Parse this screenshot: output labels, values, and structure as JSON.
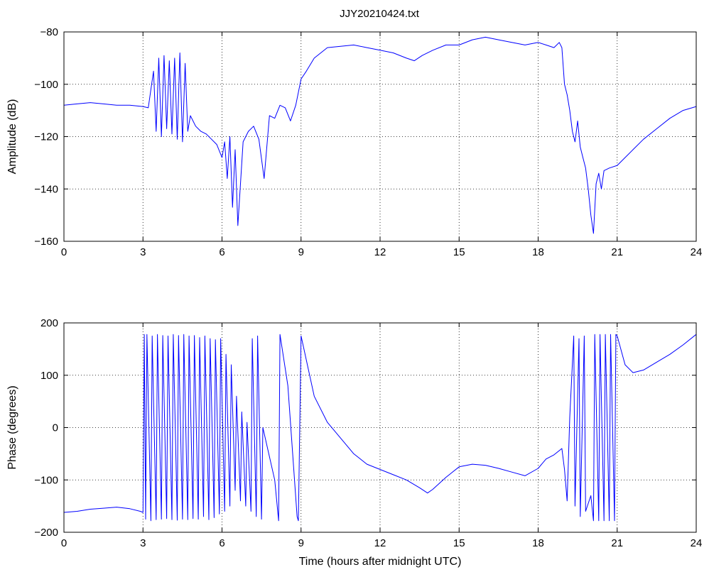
{
  "figure": {
    "title": "JJY20210424.txt"
  },
  "chart_data": [
    {
      "type": "line",
      "title": "JJY20210424.txt",
      "xlabel": "",
      "ylabel": "Amplitude (dB)",
      "xlim": [
        0,
        24
      ],
      "ylim": [
        -160,
        -80
      ],
      "xticks": [
        0,
        3,
        6,
        9,
        12,
        15,
        18,
        21,
        24
      ],
      "yticks": [
        -160,
        -140,
        -120,
        -100,
        -80
      ],
      "grid": true,
      "color": "#0000ff",
      "series": [
        {
          "x": [
            0,
            0.5,
            1,
            1.5,
            2,
            2.5,
            3,
            3.2,
            3.4,
            3.5,
            3.6,
            3.7,
            3.8,
            3.9,
            4.0,
            4.1,
            4.2,
            4.3,
            4.4,
            4.5,
            4.6,
            4.7,
            4.8,
            5.0,
            5.2,
            5.4,
            5.6,
            5.8,
            6.0,
            6.1,
            6.2,
            6.3,
            6.4,
            6.5,
            6.6,
            6.8,
            7.0,
            7.2,
            7.4,
            7.6,
            7.8,
            8.0,
            8.2,
            8.4,
            8.6,
            8.8,
            9.0,
            9.2,
            9.5,
            10.0,
            10.5,
            11.0,
            11.5,
            12.0,
            12.5,
            13.0,
            13.3,
            13.6,
            14.0,
            14.5,
            15.0,
            15.5,
            16.0,
            16.5,
            17.0,
            17.5,
            18.0,
            18.3,
            18.6,
            18.8,
            18.9,
            19.0,
            19.1,
            19.2,
            19.3,
            19.4,
            19.5,
            19.6,
            19.7,
            19.8,
            19.9,
            20.0,
            20.1,
            20.2,
            20.3,
            20.4,
            20.5,
            20.7,
            21.0,
            21.3,
            21.6,
            22.0,
            22.5,
            23.0,
            23.5,
            24.0
          ],
          "y": [
            -108,
            -107.5,
            -107,
            -107.5,
            -108,
            -108,
            -108.5,
            -109,
            -95,
            -118,
            -90,
            -120,
            -89,
            -117,
            -91,
            -119,
            -90,
            -121,
            -88,
            -122,
            -92,
            -118,
            -112,
            -116,
            -118,
            -119,
            -121,
            -123,
            -128,
            -122,
            -136,
            -120,
            -147,
            -125,
            -154,
            -122,
            -118,
            -116,
            -121,
            -136,
            -112,
            -113,
            -108,
            -109,
            -114,
            -108,
            -98,
            -95,
            -90,
            -86,
            -85.5,
            -85,
            -86,
            -87,
            -88,
            -90,
            -91,
            -89,
            -87,
            -85,
            -85,
            -83,
            -82,
            -83,
            -84,
            -85,
            -84,
            -85,
            -86,
            -84,
            -86,
            -100,
            -104,
            -110,
            -118,
            -122,
            -114,
            -124,
            -128,
            -132,
            -140,
            -150,
            -157,
            -138,
            -134,
            -140,
            -133,
            -132,
            -131,
            -128,
            -125,
            -121,
            -117,
            -113,
            -110,
            -108.5
          ]
        }
      ]
    },
    {
      "type": "line",
      "title": "",
      "xlabel": "Time (hours after midnight UTC)",
      "ylabel": "Phase (degrees)",
      "xlim": [
        0,
        24
      ],
      "ylim": [
        -200,
        200
      ],
      "xticks": [
        0,
        3,
        6,
        9,
        12,
        15,
        18,
        21,
        24
      ],
      "yticks": [
        -200,
        -100,
        0,
        100,
        200
      ],
      "grid": true,
      "color": "#0000ff",
      "series": [
        {
          "x": [
            0,
            0.5,
            1,
            1.5,
            2,
            2.5,
            2.9,
            3.0,
            3.05,
            3.1,
            3.15,
            3.3,
            3.35,
            3.5,
            3.55,
            3.7,
            3.75,
            3.9,
            3.95,
            4.1,
            4.15,
            4.3,
            4.35,
            4.5,
            4.55,
            4.7,
            4.75,
            4.9,
            4.95,
            5.1,
            5.15,
            5.3,
            5.35,
            5.5,
            5.55,
            5.7,
            5.75,
            5.9,
            5.95,
            6.1,
            6.15,
            6.3,
            6.35,
            6.5,
            6.55,
            6.7,
            6.75,
            6.9,
            6.95,
            7.1,
            7.15,
            7.3,
            7.35,
            7.5,
            7.55,
            8.0,
            8.15,
            8.2,
            8.5,
            8.85,
            8.9,
            9.0,
            9.5,
            10.0,
            10.5,
            11.0,
            11.5,
            12.0,
            12.5,
            13.0,
            13.5,
            13.8,
            14.0,
            14.5,
            15.0,
            15.5,
            16.0,
            16.5,
            17.0,
            17.5,
            18.0,
            18.3,
            18.6,
            18.9,
            19.0,
            19.1,
            19.2,
            19.35,
            19.4,
            19.55,
            19.6,
            19.75,
            19.8,
            20.0,
            20.1,
            20.15,
            20.3,
            20.35,
            20.5,
            20.55,
            20.7,
            20.75,
            20.9,
            20.95,
            21.0,
            21.3,
            21.6,
            22.0,
            22.5,
            23.0,
            23.5,
            24.0
          ],
          "y": [
            -162,
            -160,
            -156,
            -154,
            -152,
            -155,
            -160,
            -162,
            178,
            -175,
            178,
            -178,
            175,
            -176,
            178,
            -175,
            176,
            -174,
            175,
            -176,
            178,
            -177,
            176,
            -175,
            178,
            -176,
            175,
            -174,
            176,
            -175,
            172,
            -170,
            175,
            -176,
            170,
            -172,
            168,
            -165,
            170,
            -160,
            140,
            -150,
            120,
            -120,
            60,
            -140,
            30,
            -150,
            10,
            -160,
            170,
            -170,
            175,
            -175,
            0,
            -100,
            -178,
            178,
            80,
            -170,
            -178,
            175,
            60,
            10,
            -20,
            -50,
            -70,
            -80,
            -90,
            -100,
            -115,
            -125,
            -118,
            -95,
            -75,
            -70,
            -72,
            -78,
            -85,
            -92,
            -78,
            -60,
            -52,
            -40,
            -80,
            -140,
            20,
            175,
            -150,
            170,
            -170,
            175,
            -160,
            -130,
            -178,
            178,
            -178,
            178,
            -178,
            178,
            -178,
            178,
            -178,
            178,
            175,
            120,
            105,
            110,
            125,
            140,
            158,
            178
          ]
        }
      ]
    }
  ]
}
